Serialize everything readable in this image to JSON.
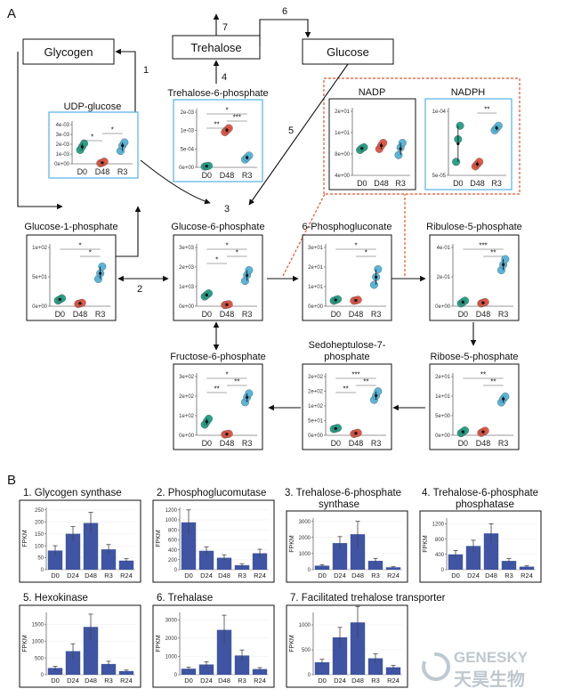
{
  "panel_labels": {
    "a": "A",
    "b": "B"
  },
  "colors": {
    "d0": "#1f9e83",
    "d48": "#e0523f",
    "r3": "#4fb3d8",
    "bar": "#3f55a3",
    "box_blue": "#5fb8e8",
    "dash": "#e8542a"
  },
  "nodes": {
    "glycogen": "Glycogen",
    "trehalose": "Trehalose",
    "glucose": "Glucose"
  },
  "arrow_numbers": [
    "1",
    "2",
    "3",
    "4",
    "5",
    "6",
    "7"
  ],
  "chart_data": [
    {
      "id": "udp",
      "type": "scatter",
      "title": "UDP-glucose",
      "categories": [
        "D0",
        "D48",
        "R3"
      ],
      "yticks": [
        "0e+00",
        "1e-03",
        "2e-03",
        "3e-03",
        "4e-03"
      ],
      "ylim": [
        0,
        0.004
      ],
      "points": [
        [
          0.0013,
          0.0016,
          0.0019
        ],
        [
          5e-05,
          0.0001,
          0.0002
        ],
        [
          0.0012,
          0.0017,
          0.002
        ]
      ],
      "means": [
        0.0016,
        0.0001,
        0.0017
      ],
      "sig": [
        "*",
        "*"
      ]
    },
    {
      "id": "t6p",
      "type": "scatter",
      "title": "Trehalose-6-phosphate",
      "categories": [
        "D0",
        "D48",
        "R3"
      ],
      "yticks": [
        "0e+00",
        "5e-04",
        "1e-03",
        "2e-03"
      ],
      "ylim": [
        0,
        0.0015
      ],
      "points": [
        [
          2e-05,
          3e-05,
          4e-05
        ],
        [
          0.0009,
          0.00095,
          0.001
        ],
        [
          0.0002,
          0.00025,
          0.0003
        ]
      ],
      "means": [
        3e-05,
        0.00095,
        0.00025
      ],
      "sig": [
        "*",
        "***",
        "**"
      ]
    },
    {
      "id": "nadp",
      "type": "scatter",
      "title": "NADP",
      "categories": [
        "D0",
        "D48",
        "R3"
      ],
      "yticks": [
        "4e+00",
        "8e+00",
        "1e+01",
        "2e+01"
      ],
      "ylim": [
        0,
        20
      ],
      "points": [
        [
          7.5,
          8.0,
          8.3
        ],
        [
          7.8,
          8.8,
          9.6
        ],
        [
          6.0,
          8.2,
          9.6
        ]
      ],
      "means": [
        8.0,
        8.8,
        7.9
      ],
      "sig": []
    },
    {
      "id": "nadph",
      "type": "scatter",
      "title": "NADPH",
      "categories": [
        "D0",
        "D48",
        "R3"
      ],
      "yticks": [
        "5e-05",
        "1e-04"
      ],
      "ylim": [
        0,
        0.00015
      ],
      "points": [
        [
          3e-05,
          8e-05,
          0.00011
        ],
        [
          2e-05,
          2.5e-05,
          3e-05
        ],
        [
          0.0001,
          0.000105,
          0.00011
        ]
      ],
      "means": [
        7e-05,
        2.5e-05,
        0.000105
      ],
      "sig": [
        "**"
      ]
    },
    {
      "id": "g1p",
      "type": "scatter",
      "title": "Glucose-1-phosphate",
      "categories": [
        "D0",
        "D48",
        "R3"
      ],
      "yticks": [
        "0e+00",
        "5e+01",
        "1e+02"
      ],
      "ylim": [
        0,
        110
      ],
      "points": [
        [
          10,
          12,
          14
        ],
        [
          4,
          5,
          6
        ],
        [
          48,
          58,
          70
        ]
      ],
      "means": [
        12,
        5,
        58
      ],
      "sig": [
        "*",
        "*"
      ]
    },
    {
      "id": "g6p",
      "type": "scatter",
      "title": "Glucose-6-phosphate",
      "categories": [
        "D0",
        "D48",
        "R3"
      ],
      "yticks": [
        "0e+00",
        "1e+03",
        "2e+03",
        "3e+03"
      ],
      "ylim": [
        0,
        3200
      ],
      "points": [
        [
          500,
          580,
          660
        ],
        [
          60,
          80,
          100
        ],
        [
          1300,
          1600,
          1850
        ]
      ],
      "means": [
        580,
        80,
        1580
      ],
      "sig": [
        "*",
        "*",
        "*"
      ]
    },
    {
      "id": "6pg",
      "type": "scatter",
      "title": "6-Phosphogluconate",
      "categories": [
        "D0",
        "D48",
        "R3"
      ],
      "yticks": [
        "0e+00",
        "1e+01",
        "2e+01",
        "3e+01"
      ],
      "ylim": [
        0,
        32
      ],
      "points": [
        [
          2.8,
          3.2,
          3.6
        ],
        [
          2.8,
          3.0,
          3.3
        ],
        [
          11,
          15,
          19
        ]
      ],
      "means": [
        3.2,
        3.0,
        15
      ],
      "sig": [
        "*",
        "*"
      ]
    },
    {
      "id": "r5p_ribulose",
      "type": "scatter",
      "title": "Ribulose-5-phosphate",
      "categories": [
        "D0",
        "D48",
        "R3"
      ],
      "yticks": [
        "0e+00",
        "2e-01",
        "4e-01"
      ],
      "ylim": [
        0,
        0.45
      ],
      "points": [
        [
          0.02,
          0.03,
          0.04
        ],
        [
          0.02,
          0.025,
          0.03
        ],
        [
          0.26,
          0.3,
          0.34
        ]
      ],
      "means": [
        0.03,
        0.025,
        0.3
      ],
      "sig": [
        "***",
        "**"
      ]
    },
    {
      "id": "f6p",
      "type": "scatter",
      "title": "Fructose-6-phosphate",
      "categories": [
        "D0",
        "D48",
        "R3"
      ],
      "yticks": [
        "0e+00",
        "1e+02",
        "2e+02",
        "3e+02"
      ],
      "ylim": [
        0,
        320
      ],
      "points": [
        [
          55,
          70,
          85
        ],
        [
          4,
          6,
          8
        ],
        [
          170,
          195,
          215
        ]
      ],
      "means": [
        70,
        6,
        195
      ],
      "sig": [
        "*",
        "**",
        "**"
      ]
    },
    {
      "id": "s7p",
      "type": "scatter",
      "title": "Sedoheptulose-7-phosphate",
      "categories": [
        "D0",
        "D48",
        "R3"
      ],
      "yticks": [
        "0e+00",
        "5e+01",
        "1e+02",
        "2e+02",
        "2e+02"
      ],
      "ylim": [
        0,
        220
      ],
      "points": [
        [
          22,
          24,
          26
        ],
        [
          5,
          7,
          9
        ],
        [
          125,
          140,
          155
        ]
      ],
      "means": [
        24,
        7,
        140
      ],
      "sig": [
        "***",
        "**",
        "**"
      ]
    },
    {
      "id": "rib5p",
      "type": "scatter",
      "title": "Ribose-5-phosphate",
      "categories": [
        "D0",
        "D48",
        "R3"
      ],
      "yticks": [
        "0e+00",
        "5e+00",
        "1e+01",
        "2e+01"
      ],
      "ylim": [
        0,
        18
      ],
      "points": [
        [
          0.6,
          1.0,
          1.4
        ],
        [
          0.7,
          1.0,
          1.3
        ],
        [
          9.5,
          10.5,
          11.2
        ]
      ],
      "means": [
        1.0,
        1.0,
        10.5
      ],
      "sig": [
        "**",
        "**"
      ]
    }
  ],
  "bar_charts": [
    {
      "id": "gs",
      "title": "1. Glycogen synthase",
      "ylabel": "FPKM",
      "categories": [
        "D0",
        "D24",
        "D48",
        "R3",
        "R24"
      ],
      "yticks": [
        "0",
        "50",
        "100",
        "150",
        "200",
        "250"
      ],
      "ymax": 260,
      "values": [
        80,
        150,
        195,
        85,
        38
      ],
      "errors": [
        20,
        30,
        45,
        20,
        8
      ]
    },
    {
      "id": "pgm",
      "title": "2. Phosphoglucomutase",
      "ylabel": "FPKM",
      "categories": [
        "D0",
        "D24",
        "D48",
        "R3",
        "R24"
      ],
      "yticks": [
        "0",
        "200",
        "400",
        "600",
        "800",
        "1000",
        "1200"
      ],
      "ymax": 1250,
      "values": [
        950,
        380,
        240,
        90,
        330
      ],
      "errors": [
        250,
        80,
        60,
        30,
        80
      ]
    },
    {
      "id": "tps",
      "title": "3. Trehalose-6-phosphate synthase",
      "ylabel": "FPKM",
      "categories": [
        "D0",
        "D24",
        "D48",
        "R3",
        "R24"
      ],
      "yticks": [
        "0",
        "1000",
        "2000",
        "3000"
      ],
      "ymax": 3200,
      "values": [
        250,
        1650,
        2200,
        550,
        150
      ],
      "errors": [
        60,
        400,
        800,
        150,
        40
      ]
    },
    {
      "id": "tpp",
      "title": "4. Trehalose-6-phosphate phosphatase",
      "ylabel": "FPKM",
      "categories": [
        "D0",
        "D24",
        "D48",
        "R3",
        "R24"
      ],
      "yticks": [
        "0",
        "400",
        "800",
        "1200"
      ],
      "ymax": 1350,
      "values": [
        400,
        620,
        950,
        230,
        80
      ],
      "errors": [
        100,
        150,
        250,
        60,
        20
      ]
    },
    {
      "id": "hk",
      "title": "5. Hexokinase",
      "ylabel": "FPKM",
      "categories": [
        "D0",
        "D24",
        "D48",
        "R3",
        "R24"
      ],
      "yticks": [
        "0",
        "500",
        "1000",
        "1500"
      ],
      "ymax": 1850,
      "values": [
        200,
        700,
        1420,
        320,
        110
      ],
      "errors": [
        50,
        220,
        380,
        80,
        30
      ]
    },
    {
      "id": "treh",
      "title": "6. Trehalase",
      "ylabel": "FPKM",
      "categories": [
        "D0",
        "D24",
        "D48",
        "R3",
        "R24"
      ],
      "yticks": [
        "0",
        "1000",
        "2000",
        "3000"
      ],
      "ymax": 3400,
      "values": [
        330,
        560,
        2450,
        1050,
        310
      ],
      "errors": [
        80,
        150,
        800,
        300,
        80
      ]
    },
    {
      "id": "ftt",
      "title": "7. Facilitated trehalose transporter",
      "ylabel": "FPKM",
      "categories": [
        "D0",
        "D24",
        "D48",
        "R3",
        "R24"
      ],
      "yticks": [
        "0",
        "500",
        "1000"
      ],
      "ymax": 1250,
      "values": [
        250,
        750,
        1050,
        330,
        150
      ],
      "errors": [
        60,
        200,
        320,
        90,
        40
      ]
    }
  ],
  "watermark": {
    "en": "GENESKY",
    "cn": "天昊生物"
  }
}
